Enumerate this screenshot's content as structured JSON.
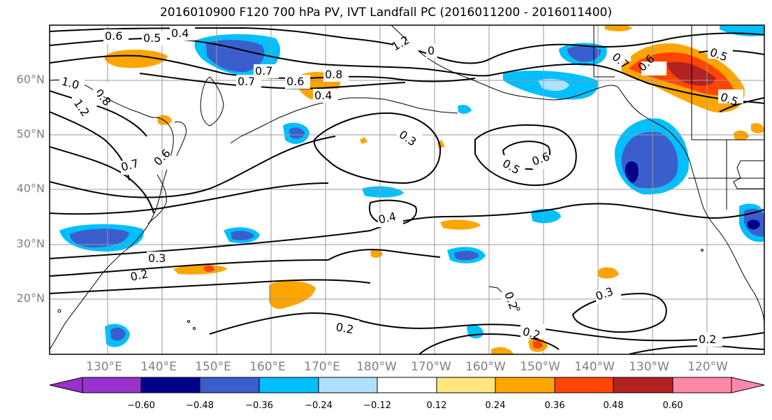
{
  "title": "2016010900 F120 700 hPa PV, IVT Landfall PC (2016011200 - 2016011400)",
  "lat_labels": [
    "60°N",
    "50°N",
    "40°N",
    "30°N",
    "20°N"
  ],
  "lon_labels": [
    "130°E",
    "140°E",
    "150°E",
    "160°E",
    "170°E",
    "180°W",
    "170°W",
    "160°W",
    "150°W",
    "140°W",
    "130°W",
    "120°W"
  ],
  "contour_labels": [
    "0.6",
    "0.5",
    "0.4",
    "1.2",
    "0",
    "1.0",
    "0.8",
    "1.2",
    "0.7",
    "0.6",
    "0.8",
    "0.4",
    "0.3",
    "0.5",
    "0.6",
    "0.7",
    "0.6",
    "0.7",
    "0.5",
    "0.6",
    "0.7",
    "0.5",
    "0.4",
    "0.3",
    "0.2",
    "0.2",
    "0.2",
    "0.3",
    "0.2",
    "0.2"
  ],
  "colorbar": {
    "ticks": [
      "−0.60",
      "−0.48",
      "−0.36",
      "−0.24",
      "−0.12",
      "0.12",
      "0.24",
      "0.36",
      "0.48",
      "0.60"
    ],
    "colors": [
      "#9932cc",
      "#00008b",
      "#3a5fcd",
      "#00bfff",
      "#b0e0ff",
      "#ffffff",
      "#ffe57f",
      "#ffa500",
      "#ff4500",
      "#b22222",
      "#ff88aa"
    ]
  }
}
